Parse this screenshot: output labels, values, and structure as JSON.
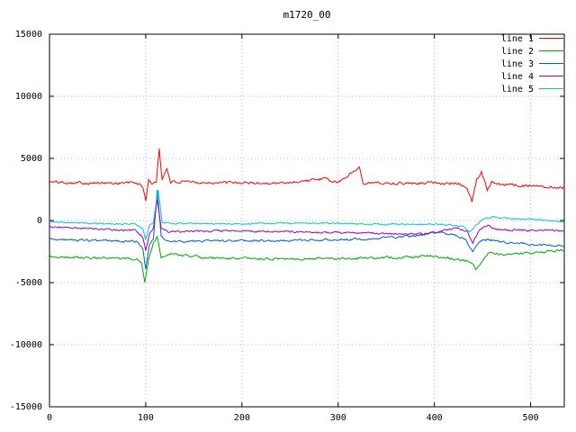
{
  "chart_data": {
    "type": "line",
    "title": "m1720_00",
    "xlabel": "",
    "ylabel": "",
    "xlim": [
      0,
      535
    ],
    "ylim": [
      -15000,
      15000
    ],
    "x_ticks": [
      0,
      100,
      200,
      300,
      400,
      500
    ],
    "y_ticks": [
      -15000,
      -10000,
      -5000,
      0,
      5000,
      10000,
      15000
    ],
    "grid": true,
    "legend_position": "top-right",
    "background": "#ffffff",
    "grid_color": "#b8b8b8",
    "axis_color": "#000000",
    "series": [
      {
        "name": "line 1",
        "color": "#ff0000",
        "seed": 101,
        "noise": 140,
        "keypoints": [
          [
            0,
            3100
          ],
          [
            60,
            3000
          ],
          [
            90,
            3050
          ],
          [
            97,
            2700
          ],
          [
            100,
            1600
          ],
          [
            103,
            3300
          ],
          [
            107,
            2900
          ],
          [
            111,
            3100
          ],
          [
            114,
            5800
          ],
          [
            117,
            3300
          ],
          [
            122,
            4200
          ],
          [
            126,
            3100
          ],
          [
            170,
            3050
          ],
          [
            240,
            3000
          ],
          [
            285,
            3350
          ],
          [
            300,
            3050
          ],
          [
            322,
            4300
          ],
          [
            326,
            3050
          ],
          [
            360,
            3000
          ],
          [
            400,
            3050
          ],
          [
            425,
            2950
          ],
          [
            434,
            2600
          ],
          [
            439,
            1500
          ],
          [
            444,
            3300
          ],
          [
            449,
            3900
          ],
          [
            455,
            2500
          ],
          [
            460,
            3200
          ],
          [
            470,
            2900
          ],
          [
            500,
            2800
          ],
          [
            535,
            2650
          ]
        ]
      },
      {
        "name": "line 2",
        "color": "#00a800",
        "seed": 202,
        "noise": 120,
        "keypoints": [
          [
            0,
            -2900
          ],
          [
            50,
            -3050
          ],
          [
            90,
            -3100
          ],
          [
            96,
            -3400
          ],
          [
            99,
            -5000
          ],
          [
            103,
            -3100
          ],
          [
            108,
            -1800
          ],
          [
            112,
            -1300
          ],
          [
            116,
            -2900
          ],
          [
            125,
            -2700
          ],
          [
            160,
            -3000
          ],
          [
            220,
            -3100
          ],
          [
            300,
            -3050
          ],
          [
            360,
            -3000
          ],
          [
            395,
            -2850
          ],
          [
            420,
            -3100
          ],
          [
            437,
            -3300
          ],
          [
            443,
            -3900
          ],
          [
            450,
            -3300
          ],
          [
            456,
            -2600
          ],
          [
            470,
            -2750
          ],
          [
            500,
            -2600
          ],
          [
            535,
            -2400
          ]
        ]
      },
      {
        "name": "line 3",
        "color": "#0060c8",
        "seed": 303,
        "noise": 110,
        "keypoints": [
          [
            0,
            -1500
          ],
          [
            60,
            -1650
          ],
          [
            90,
            -1700
          ],
          [
            97,
            -2200
          ],
          [
            100,
            -3900
          ],
          [
            104,
            -1900
          ],
          [
            108,
            -1400
          ],
          [
            112,
            2400
          ],
          [
            116,
            -1200
          ],
          [
            121,
            -1700
          ],
          [
            180,
            -1650
          ],
          [
            260,
            -1600
          ],
          [
            320,
            -1500
          ],
          [
            360,
            -1350
          ],
          [
            385,
            -1200
          ],
          [
            405,
            -900
          ],
          [
            420,
            -1200
          ],
          [
            432,
            -1500
          ],
          [
            440,
            -2600
          ],
          [
            447,
            -1700
          ],
          [
            455,
            -1500
          ],
          [
            470,
            -1750
          ],
          [
            500,
            -1900
          ],
          [
            535,
            -2100
          ]
        ]
      },
      {
        "name": "line 4",
        "color": "#9800c8",
        "seed": 404,
        "noise": 100,
        "keypoints": [
          [
            0,
            -500
          ],
          [
            50,
            -700
          ],
          [
            90,
            -800
          ],
          [
            97,
            -1300
          ],
          [
            100,
            -2400
          ],
          [
            104,
            -1000
          ],
          [
            108,
            -600
          ],
          [
            112,
            1700
          ],
          [
            116,
            -700
          ],
          [
            125,
            -900
          ],
          [
            180,
            -850
          ],
          [
            250,
            -900
          ],
          [
            310,
            -1000
          ],
          [
            350,
            -1050
          ],
          [
            390,
            -1100
          ],
          [
            410,
            -800
          ],
          [
            425,
            -650
          ],
          [
            434,
            -900
          ],
          [
            440,
            -1800
          ],
          [
            447,
            -700
          ],
          [
            455,
            -400
          ],
          [
            465,
            -700
          ],
          [
            490,
            -800
          ],
          [
            515,
            -750
          ],
          [
            535,
            -900
          ]
        ]
      },
      {
        "name": "line 5",
        "color": "#00c8c8",
        "seed": 505,
        "noise": 80,
        "keypoints": [
          [
            0,
            -100
          ],
          [
            50,
            -250
          ],
          [
            90,
            -300
          ],
          [
            97,
            -700
          ],
          [
            100,
            -1500
          ],
          [
            104,
            -400
          ],
          [
            108,
            -150
          ],
          [
            113,
            2500
          ],
          [
            117,
            -200
          ],
          [
            130,
            -250
          ],
          [
            200,
            -250
          ],
          [
            280,
            -200
          ],
          [
            340,
            -300
          ],
          [
            390,
            -300
          ],
          [
            415,
            -350
          ],
          [
            430,
            -500
          ],
          [
            437,
            -950
          ],
          [
            444,
            -300
          ],
          [
            452,
            150
          ],
          [
            462,
            300
          ],
          [
            475,
            150
          ],
          [
            500,
            100
          ],
          [
            520,
            0
          ],
          [
            535,
            -150
          ]
        ]
      }
    ]
  }
}
